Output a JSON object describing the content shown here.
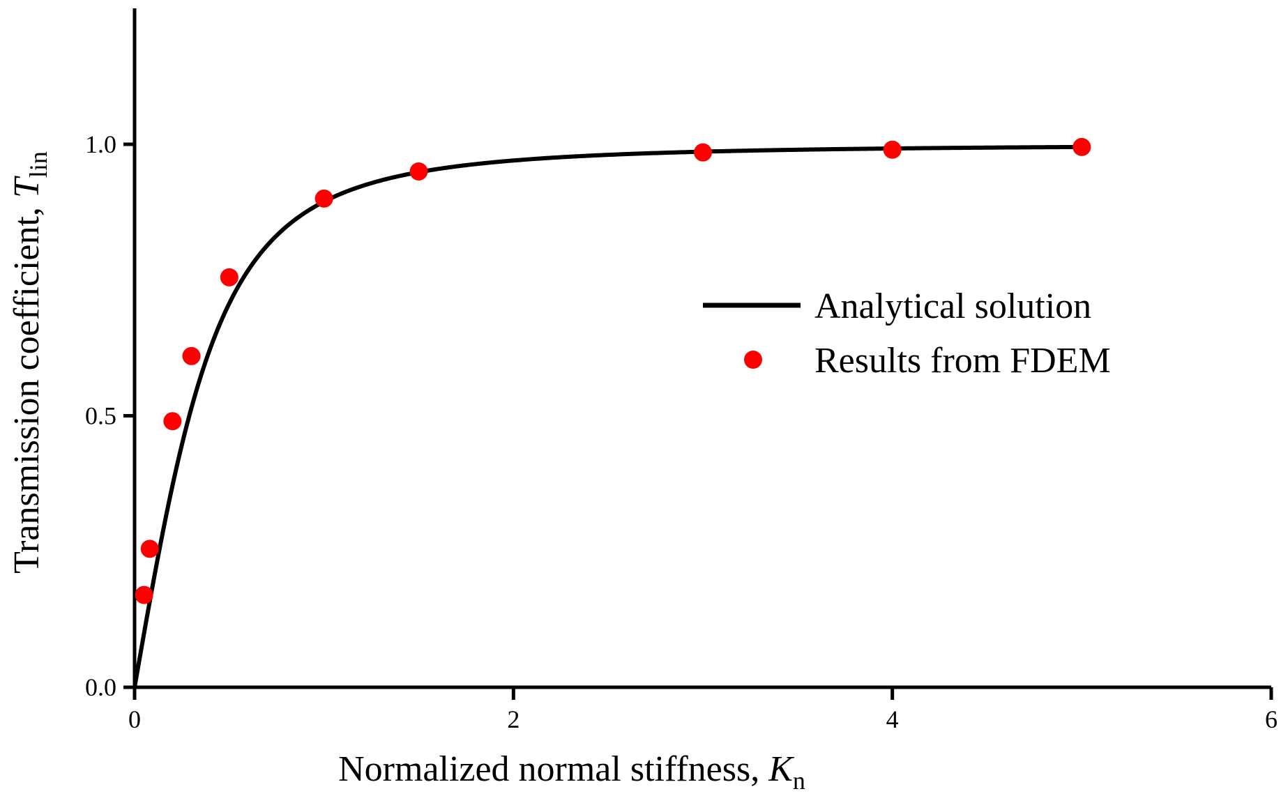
{
  "chart_data": {
    "type": "line",
    "title": "",
    "xlabel": {
      "main": "Normalized normal stiffness, ",
      "var": "K",
      "sub": "n"
    },
    "ylabel": {
      "main": "Transmission coefficient, ",
      "var": "T",
      "sub": "lin"
    },
    "xlim": [
      0,
      6
    ],
    "ylim": [
      0,
      1.25
    ],
    "xticks": [
      0,
      2,
      4,
      6
    ],
    "xtick_labels": [
      "0",
      "2",
      "4",
      "6"
    ],
    "yticks": [
      0.0,
      0.5,
      1.0
    ],
    "ytick_labels": [
      "0.0",
      "0.5",
      "1.0"
    ],
    "grid": false,
    "legend_position": "right-center",
    "series": [
      {
        "name": "Analytical solution",
        "kind": "line",
        "color": "#000000",
        "formula": "2K/sqrt(1+4K^2)",
        "x": [
          0,
          0.05,
          0.1,
          0.2,
          0.3,
          0.4,
          0.5,
          0.6,
          0.7,
          0.8,
          1.0,
          1.25,
          1.5,
          2.0,
          2.5,
          3.0,
          3.5,
          4.0,
          4.5,
          5.0
        ],
        "y": [
          0,
          0.0995,
          0.196,
          0.371,
          0.515,
          0.625,
          0.707,
          0.768,
          0.814,
          0.848,
          0.894,
          0.928,
          0.949,
          0.97,
          0.981,
          0.986,
          0.99,
          0.992,
          0.994,
          0.995
        ]
      },
      {
        "name": "Results from FDEM",
        "kind": "scatter",
        "color": "#ff0000",
        "x": [
          0.05,
          0.08,
          0.2,
          0.3,
          0.5,
          1.0,
          1.5,
          3.0,
          4.0,
          5.0
        ],
        "y": [
          0.17,
          0.255,
          0.49,
          0.61,
          0.755,
          0.9,
          0.95,
          0.985,
          0.99,
          0.995
        ]
      }
    ]
  }
}
